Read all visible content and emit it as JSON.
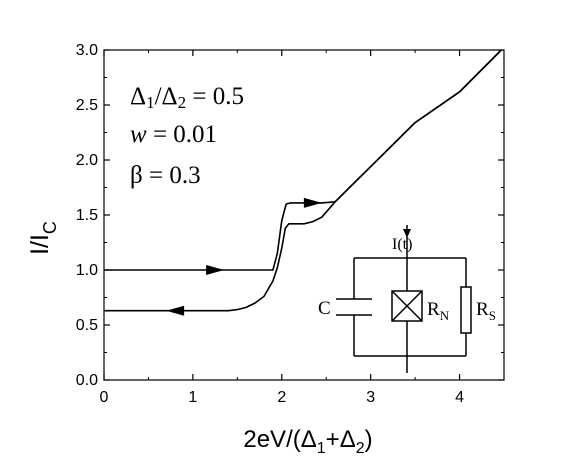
{
  "chart_data": {
    "type": "line",
    "title": "",
    "xlabel": {
      "main": "2eV/(Δ",
      "sub1": "1",
      "plus": "+Δ",
      "sub2": "2",
      "close": ")"
    },
    "ylabel": {
      "main": "I/I",
      "sub": "C"
    },
    "xlim": [
      0,
      4.5
    ],
    "ylim": [
      0,
      3.0
    ],
    "x_ticks": [
      0,
      1,
      2,
      3,
      4
    ],
    "x_tick_labels": [
      "0",
      "1",
      "2",
      "3",
      "4"
    ],
    "y_ticks": [
      0,
      0.5,
      1.0,
      1.5,
      2.0,
      2.5,
      3.0
    ],
    "y_tick_labels": [
      "0.0",
      "0.5",
      "1.0",
      "1.5",
      "2.0",
      "2.5",
      "3.0"
    ],
    "grid": false,
    "annotations": [
      "Δ₁/Δ₂ = 0.5",
      "w = 0.01",
      "β = 0.3"
    ],
    "annotation_parts": {
      "ratio": {
        "d1": "Δ",
        "s1": "1",
        "slash": "/Δ",
        "s2": "2",
        "rest": " = 0.5"
      },
      "w": {
        "sym": "w",
        "rest": " = 0.01"
      },
      "beta": {
        "sym": "β",
        "rest": " = 0.3"
      }
    },
    "series": [
      {
        "direction": "sweep-up",
        "x": [
          0.0,
          1.0,
          1.9,
          1.95,
          2.0,
          2.05,
          2.1,
          2.2,
          2.3,
          2.45,
          2.6,
          3.0,
          3.5,
          4.0,
          4.47
        ],
        "y": [
          1.0,
          1.0,
          1.0,
          1.15,
          1.45,
          1.6,
          1.61,
          1.61,
          1.61,
          1.61,
          1.62,
          1.94,
          2.34,
          2.62,
          3.0
        ]
      },
      {
        "direction": "sweep-down",
        "x": [
          4.47,
          4.0,
          3.5,
          3.0,
          2.6,
          2.45,
          2.35,
          2.25,
          2.15,
          2.08,
          2.04,
          2.0,
          1.95,
          1.9,
          1.85,
          1.8,
          1.7,
          1.6,
          1.5,
          1.4,
          1.3,
          1.0,
          0.5,
          0.0
        ],
        "y": [
          3.0,
          2.62,
          2.34,
          1.94,
          1.62,
          1.48,
          1.44,
          1.42,
          1.42,
          1.42,
          1.38,
          1.2,
          1.02,
          0.9,
          0.83,
          0.76,
          0.7,
          0.66,
          0.64,
          0.63,
          0.63,
          0.63,
          0.63,
          0.63
        ]
      }
    ],
    "arrows": [
      {
        "x": 1.25,
        "y": 1.0,
        "dir": "right"
      },
      {
        "x": 2.35,
        "y": 1.61,
        "dir": "right"
      },
      {
        "x": 0.8,
        "y": 0.63,
        "dir": "left"
      }
    ]
  },
  "circuit": {
    "current_label": "I(t)",
    "capacitor_label": "C",
    "junction_label": {
      "main": "R",
      "sub": "N"
    },
    "resistor_label": {
      "main": "R",
      "sub": "S"
    }
  }
}
